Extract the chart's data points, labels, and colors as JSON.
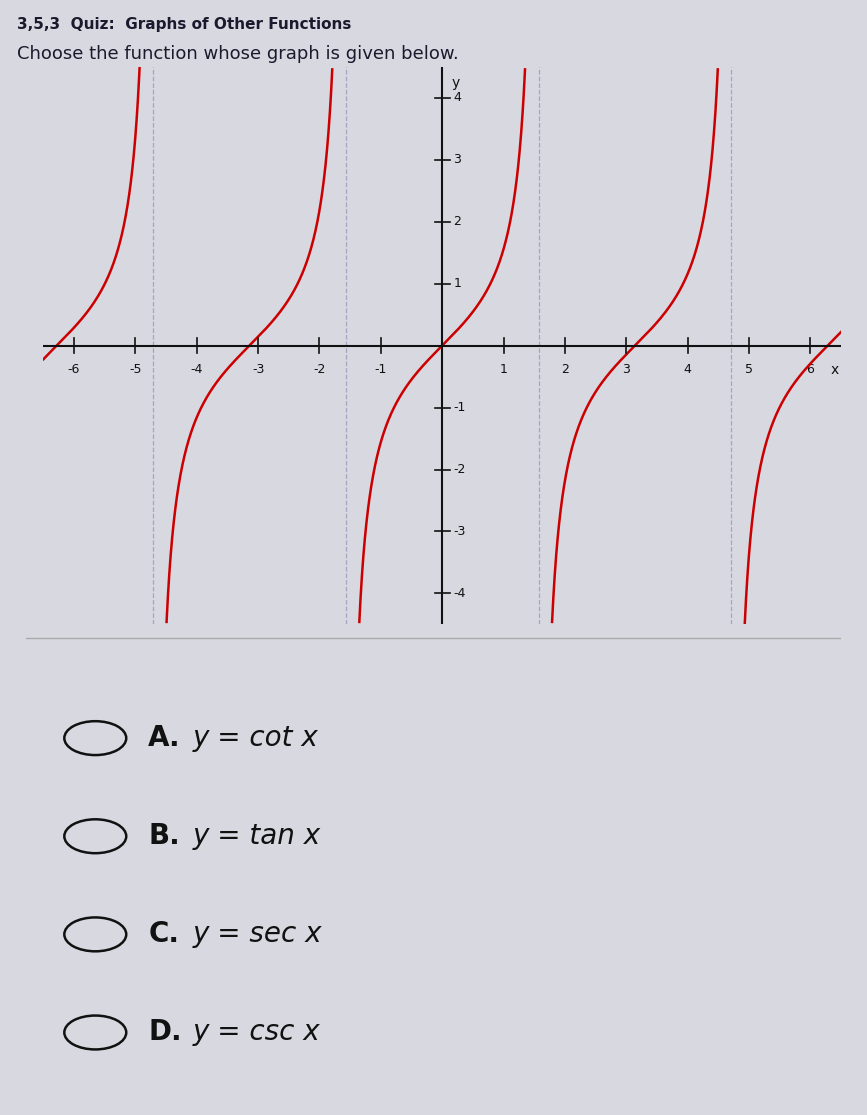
{
  "title_line1": "3,5,3  Quiz:  Graphs of Other Functions",
  "title_line2": "Choose the function whose graph is given below.",
  "xlim": [
    -6.5,
    6.5
  ],
  "ylim": [
    -4.5,
    4.5
  ],
  "xticks": [
    -6,
    -5,
    -4,
    -3,
    -2,
    -1,
    1,
    2,
    3,
    4,
    5,
    6
  ],
  "yticks": [
    -4,
    -3,
    -2,
    -1,
    1,
    2,
    3,
    4
  ],
  "xlabel": "x",
  "ylabel": "y",
  "curve_color": "#cc0000",
  "asymptote_color": "#9999bb",
  "background_color": "#d8d8e0",
  "graph_bg_color": "#d0d0dc",
  "function": "tan",
  "choices": [
    "A.  y = cot x",
    "B.  y = tan x",
    "C.  y = sec x",
    "D.  y = csc x"
  ],
  "choice_fontsize": 20,
  "axis_color": "#111111",
  "text_color": "#1a1a2e"
}
